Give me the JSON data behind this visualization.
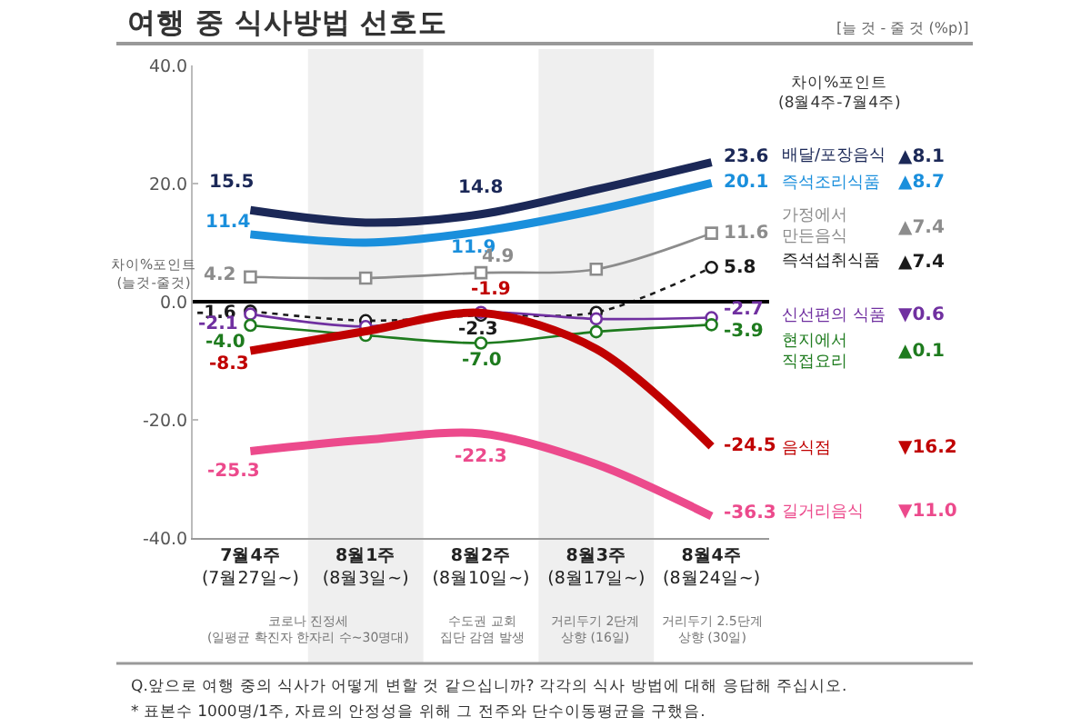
{
  "chart_data": {
    "type": "line",
    "title": "여행 중 식사방법 선호도",
    "ylabel": "차이%포인트\n(늘것-줄것)",
    "categories": [
      "7월4주\n(7월27일~)",
      "8월1주\n(8월3일~)",
      "8월2주\n(8월10일~)",
      "8월3주\n(8월17일~)",
      "8월4주\n(8월24일~)"
    ],
    "series": [
      {
        "name": "배달/포장음식",
        "color": "#1b2857",
        "values": [
          15.5,
          13.4,
          14.8,
          19.0,
          23.6
        ],
        "value_labels": [
          "15.5",
          null,
          "14.8",
          null,
          "23.6"
        ]
      },
      {
        "name": "즉석조리식품",
        "color": "#1a8fdc",
        "values": [
          11.4,
          10.0,
          11.9,
          15.5,
          20.1
        ],
        "value_labels": [
          "11.4",
          null,
          "11.9",
          null,
          "20.1"
        ]
      },
      {
        "name": "가정에서\n만든음식",
        "color": "#8c8c8c",
        "values": [
          4.2,
          4.0,
          4.9,
          5.5,
          11.6
        ],
        "value_labels": [
          "4.2",
          null,
          "4.9",
          null,
          "11.6"
        ],
        "marker": "square"
      },
      {
        "name": "즉석섭취식품",
        "color": "#1a1a1a",
        "values": [
          -1.6,
          -3.2,
          -2.3,
          -1.8,
          5.8
        ],
        "value_labels": [
          "-1.6",
          null,
          "-2.3",
          null,
          "5.8"
        ],
        "marker": "circle",
        "line_style": "dotted"
      },
      {
        "name": "신선편의 식품",
        "color": "#7030a0",
        "values": [
          -2.1,
          -4.2,
          -1.8,
          -2.9,
          -2.7
        ],
        "value_labels": [
          "-2.1",
          null,
          null,
          null,
          "-2.7"
        ],
        "marker": "circle"
      },
      {
        "name": "현지에서\n직접요리",
        "color": "#1e7b1e",
        "values": [
          -4.0,
          -5.7,
          -7.0,
          -5.1,
          -3.9
        ],
        "value_labels": [
          "-4.0",
          null,
          "-7.0",
          null,
          "-3.9"
        ],
        "marker": "circle"
      },
      {
        "name": "음식점",
        "color": "#c00000",
        "values": [
          -8.3,
          -5.0,
          -1.9,
          -8.0,
          -24.5
        ],
        "value_labels": [
          "-8.3",
          null,
          "-1.9",
          null,
          "-24.5"
        ]
      },
      {
        "name": "길거리음식",
        "color": "#ec4a8c",
        "values": [
          -25.3,
          -23.4,
          -22.3,
          -27.5,
          -36.3
        ],
        "value_labels": [
          "-25.3",
          null,
          "-22.3",
          null,
          "-36.3"
        ]
      }
    ],
    "annotations": [
      "▲8.1",
      "▲8.7",
      "▲7.4",
      "▲7.4",
      "▼0.6",
      "▲0.1",
      "▼16.2",
      "▼11.0",
      "차이%포인트\n(8월4주-7월4주)",
      "[늘 것 - 줄 것 (%p)]",
      "코로나 진정세\n(일평균 확진자 한자리 수~30명대)",
      "수도권 교회\n집단 감염 발생",
      "거리두기 2단계\n상향 (16일)",
      "거리두기 2.5단계\n상향 (30일)",
      "Q.앞으로 여행 중의 식사가 어떻게 변할 것 같으십니까? 각각의 식사 방법에 대해 응답해 주십시오.",
      "* 표본수 1000명/1주, 자료의 안정성을 위해 그 전주와 단수이동평균을 구했음."
    ],
    "ylim": [
      -40,
      40
    ],
    "yticks": [
      {
        "value": 40,
        "label": "40.0"
      },
      {
        "value": 20,
        "label": "20.0"
      },
      {
        "value": 0,
        "label": "0.0"
      },
      {
        "value": -20,
        "label": "-20.0"
      },
      {
        "value": -40,
        "label": "-40.0"
      }
    ],
    "ref_lines": [
      {
        "axis": "y",
        "value": 0,
        "color": "#000000"
      }
    ],
    "bands": [
      {
        "axis": "x",
        "from": "8월1주\n(8월3일~)",
        "to": "8월1주\n(8월3일~)",
        "color": "#efefef"
      },
      {
        "axis": "x",
        "from": "8월3주\n(8월17일~)",
        "to": "8월3주\n(8월17일~)",
        "color": "#efefef"
      }
    ],
    "legend": false
  }
}
